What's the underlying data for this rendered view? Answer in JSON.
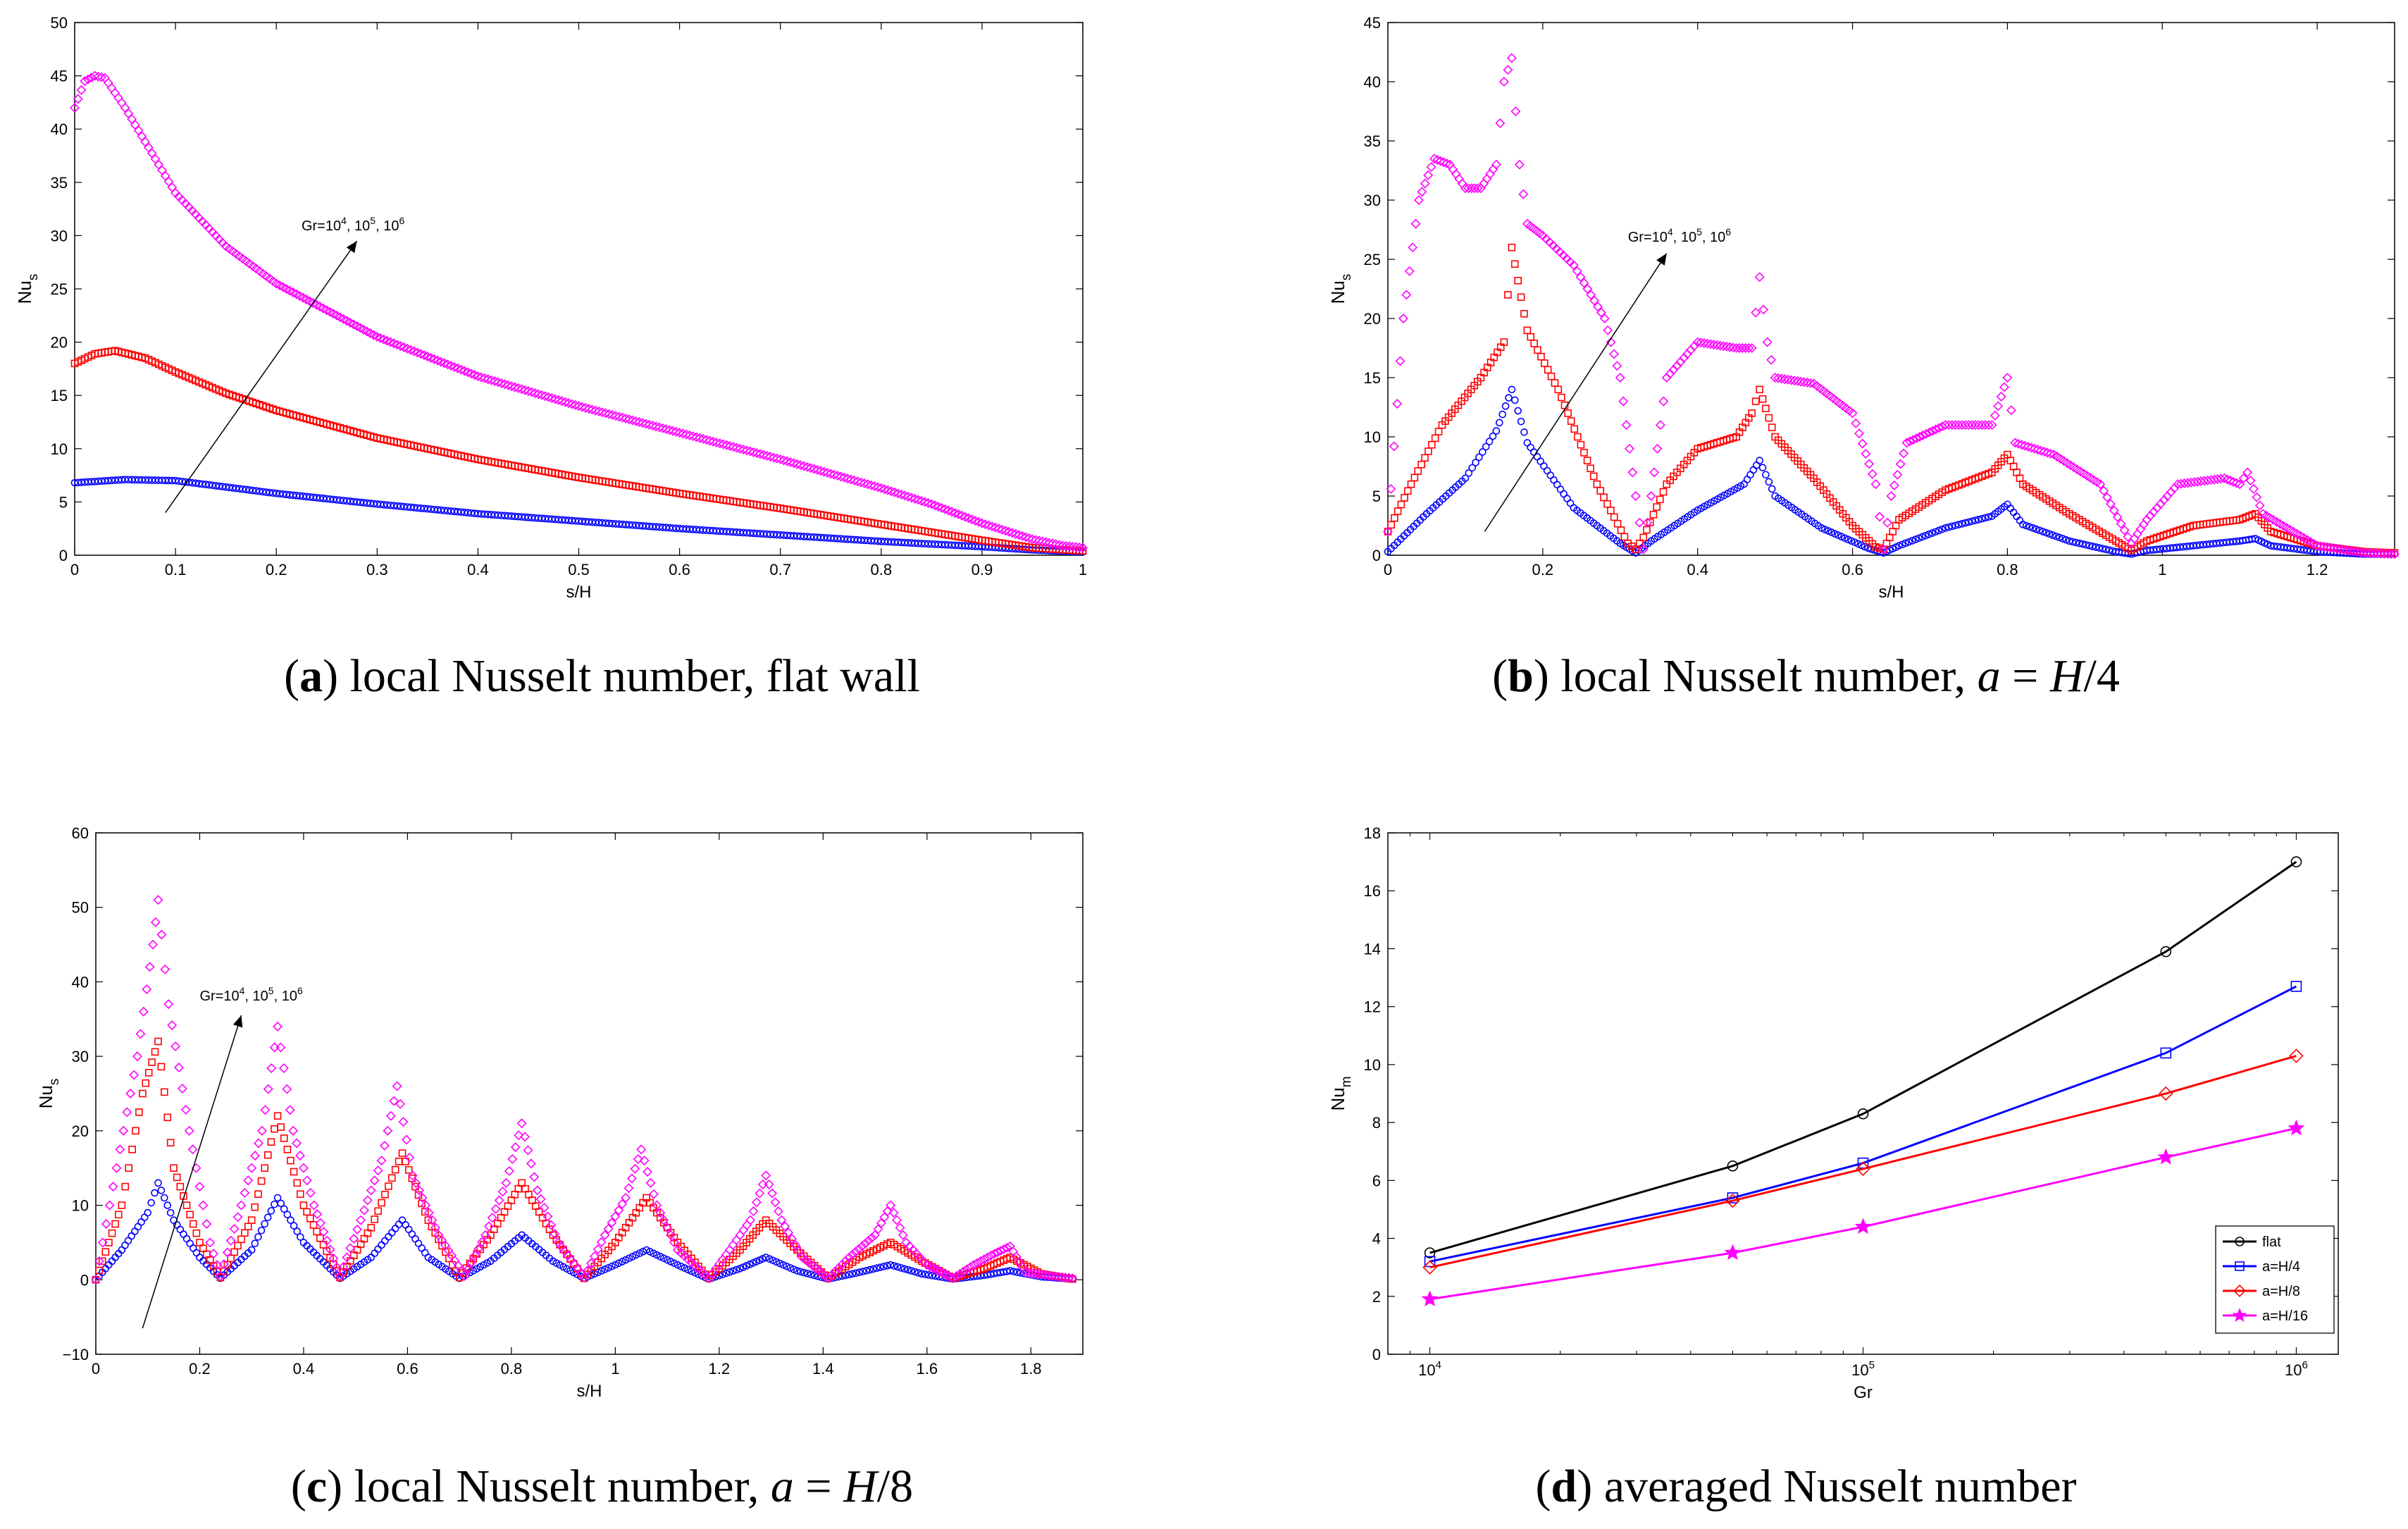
{
  "chart_data": [
    {
      "id": "a",
      "type": "scatter",
      "caption_letter": "a",
      "caption_text": "local Nusselt number, flat wall",
      "xlabel": "s/H",
      "ylabel_main": "Nu",
      "ylabel_sub": "s",
      "xlim": [
        0,
        1
      ],
      "ylim": [
        0,
        50
      ],
      "xticks": [
        0,
        0.1,
        0.2,
        0.3,
        0.4,
        0.5,
        0.6,
        0.7,
        0.8,
        0.9,
        1
      ],
      "xticklabels": [
        "0",
        "0.1",
        "0.2",
        "0.3",
        "0.4",
        "0.5",
        "0.6",
        "0.7",
        "0.8",
        "0.9",
        "1"
      ],
      "yticks": [
        0,
        5,
        10,
        15,
        20,
        25,
        30,
        35,
        40,
        45,
        50
      ],
      "yticklabels": [
        "0",
        "5",
        "10",
        "15",
        "20",
        "25",
        "30",
        "35",
        "40",
        "45",
        "50"
      ],
      "annotation": {
        "text": "Gr=10",
        "exps": [
          "4",
          "5",
          "6"
        ],
        "from": [
          0.09,
          4
        ],
        "to": [
          0.28,
          29.5
        ],
        "label_at": [
          0.225,
          30.5
        ]
      },
      "series": [
        {
          "name": "Gr=10^4",
          "color": "#0000ff",
          "marker": "circle",
          "x": [
            0,
            0.05,
            0.1,
            0.15,
            0.2,
            0.3,
            0.4,
            0.5,
            0.6,
            0.7,
            0.8,
            0.9,
            0.95,
            1
          ],
          "y": [
            6.8,
            7.1,
            7.0,
            6.4,
            5.8,
            4.8,
            3.9,
            3.2,
            2.5,
            1.9,
            1.3,
            0.8,
            0.5,
            0.3
          ]
        },
        {
          "name": "Gr=10^5",
          "color": "#ff0000",
          "marker": "square",
          "x": [
            0,
            0.02,
            0.04,
            0.07,
            0.1,
            0.15,
            0.2,
            0.3,
            0.4,
            0.5,
            0.6,
            0.7,
            0.8,
            0.9,
            0.95,
            1
          ],
          "y": [
            18.0,
            18.9,
            19.2,
            18.5,
            17.2,
            15.2,
            13.6,
            11.0,
            9.0,
            7.3,
            5.8,
            4.4,
            2.9,
            1.4,
            0.7,
            0.4
          ]
        },
        {
          "name": "Gr=10^6",
          "color": "#ff00ff",
          "marker": "diamond",
          "x": [
            0,
            0.01,
            0.02,
            0.03,
            0.05,
            0.1,
            0.15,
            0.2,
            0.3,
            0.4,
            0.5,
            0.6,
            0.7,
            0.8,
            0.85,
            0.9,
            0.95,
            0.98,
            1
          ],
          "y": [
            42.0,
            44.5,
            45.0,
            44.8,
            42.0,
            34.0,
            29.0,
            25.5,
            20.5,
            16.8,
            14.0,
            11.5,
            9.0,
            6.3,
            4.8,
            3.0,
            1.5,
            0.9,
            0.7
          ]
        }
      ]
    },
    {
      "id": "b",
      "type": "scatter",
      "caption_letter": "b",
      "caption_text": "local Nusselt number,",
      "caption_math_a": "a",
      "caption_math_eq": " = ",
      "caption_math_h": "H",
      "caption_math_frac": "/4",
      "xlabel": "s/H",
      "ylabel_main": "Nu",
      "ylabel_sub": "s",
      "xlim": [
        0,
        1.3
      ],
      "ylim": [
        0,
        45
      ],
      "xticks": [
        0,
        0.2,
        0.4,
        0.6,
        0.8,
        1,
        1.2
      ],
      "xticklabels": [
        "0",
        "0.2",
        "0.4",
        "0.6",
        "0.8",
        "1",
        "1.2"
      ],
      "yticks": [
        0,
        5,
        10,
        15,
        20,
        25,
        30,
        35,
        40,
        45
      ],
      "yticklabels": [
        "0",
        "5",
        "10",
        "15",
        "20",
        "25",
        "30",
        "35",
        "40",
        "45"
      ],
      "annotation": {
        "text": "Gr=10",
        "exps": [
          "4",
          "5",
          "6"
        ],
        "from": [
          0.125,
          2
        ],
        "to": [
          0.36,
          25.5
        ],
        "label_at": [
          0.31,
          26.5
        ]
      },
      "series": [
        {
          "name": "Gr=10^4",
          "color": "#0000ff",
          "marker": "circle",
          "x": [
            0,
            0.05,
            0.1,
            0.14,
            0.16,
            0.18,
            0.24,
            0.3,
            0.32,
            0.34,
            0.4,
            0.46,
            0.48,
            0.5,
            0.56,
            0.62,
            0.64,
            0.66,
            0.72,
            0.78,
            0.8,
            0.82,
            0.88,
            0.94,
            0.96,
            0.98,
            1.04,
            1.1,
            1.12,
            1.14,
            1.2,
            1.26,
            1.3
          ],
          "y": [
            0.3,
            3.5,
            6.5,
            10.5,
            14.0,
            9.5,
            4.0,
            1.0,
            0.2,
            1.2,
            3.8,
            6.0,
            8.0,
            5.0,
            2.3,
            0.6,
            0.2,
            0.8,
            2.3,
            3.3,
            4.3,
            2.6,
            1.2,
            0.3,
            0.1,
            0.4,
            0.8,
            1.2,
            1.4,
            0.8,
            0.3,
            0.1,
            0.1
          ]
        },
        {
          "name": "Gr=10^5",
          "color": "#ff0000",
          "marker": "square",
          "x": [
            0,
            0.03,
            0.07,
            0.12,
            0.15,
            0.16,
            0.18,
            0.22,
            0.27,
            0.31,
            0.32,
            0.33,
            0.36,
            0.4,
            0.45,
            0.47,
            0.48,
            0.5,
            0.55,
            0.6,
            0.63,
            0.64,
            0.66,
            0.72,
            0.78,
            0.8,
            0.82,
            0.88,
            0.94,
            0.96,
            0.98,
            1.04,
            1.1,
            1.12,
            1.14,
            1.2,
            1.26,
            1.3
          ],
          "y": [
            2.0,
            6.0,
            11.0,
            15.0,
            18.0,
            26.0,
            19.0,
            14.0,
            6.0,
            1.0,
            0.5,
            1.5,
            6.0,
            9.0,
            10.0,
            12.0,
            14.0,
            10.0,
            6.5,
            2.5,
            0.7,
            0.5,
            3.0,
            5.5,
            7.0,
            8.5,
            6.0,
            3.5,
            1.2,
            0.4,
            1.2,
            2.5,
            3.0,
            3.5,
            2.0,
            0.8,
            0.3,
            0.2
          ]
        },
        {
          "name": "Gr=10^6",
          "color": "#ff00ff",
          "marker": "diamond",
          "x": [
            0,
            0.02,
            0.04,
            0.06,
            0.08,
            0.1,
            0.12,
            0.14,
            0.15,
            0.16,
            0.17,
            0.18,
            0.2,
            0.24,
            0.28,
            0.3,
            0.32,
            0.33,
            0.34,
            0.36,
            0.4,
            0.45,
            0.47,
            0.48,
            0.49,
            0.5,
            0.55,
            0.6,
            0.63,
            0.64,
            0.65,
            0.67,
            0.72,
            0.78,
            0.8,
            0.81,
            0.86,
            0.92,
            0.96,
            0.98,
            1.02,
            1.08,
            1.1,
            1.11,
            1.13,
            1.2,
            1.26,
            1.3
          ],
          "y": [
            2.0,
            20.0,
            30.0,
            33.5,
            33.0,
            31.0,
            31.0,
            33.0,
            40.0,
            42.0,
            33.0,
            28.0,
            27.0,
            24.5,
            20.0,
            15.0,
            5.0,
            0.5,
            5.0,
            15.0,
            18.0,
            17.5,
            17.5,
            23.5,
            18.0,
            15.0,
            14.5,
            12.0,
            6.0,
            0.5,
            5.0,
            9.5,
            11.0,
            11.0,
            15.0,
            9.5,
            8.5,
            6.0,
            1.0,
            3.0,
            6.0,
            6.5,
            6.0,
            7.0,
            3.5,
            0.8,
            0.2,
            0.1
          ]
        }
      ]
    },
    {
      "id": "c",
      "type": "scatter",
      "caption_letter": "c",
      "caption_text": "local Nusselt number,",
      "caption_math_a": "a",
      "caption_math_eq": " = ",
      "caption_math_h": "H",
      "caption_math_frac": "/8",
      "xlabel": "s/H",
      "ylabel_main": "Nu",
      "ylabel_sub": "s",
      "xlim": [
        0,
        1.9
      ],
      "ylim": [
        -10,
        60
      ],
      "xticks": [
        0,
        0.2,
        0.4,
        0.6,
        0.8,
        1,
        1.2,
        1.4,
        1.6,
        1.8
      ],
      "xticklabels": [
        "0",
        "0.2",
        "0.4",
        "0.6",
        "0.8",
        "1",
        "1.2",
        "1.4",
        "1.6",
        "1.8"
      ],
      "yticks": [
        -10,
        0,
        10,
        20,
        30,
        40,
        50,
        60
      ],
      "yticklabels": [
        "−10",
        "0",
        "10",
        "20",
        "30",
        "40",
        "50",
        "60"
      ],
      "annotation": {
        "text": "Gr=10",
        "exps": [
          "4",
          "5",
          "6"
        ],
        "from": [
          0.09,
          -6.5
        ],
        "to": [
          0.28,
          35.5
        ],
        "label_at": [
          0.2,
          37.5
        ]
      },
      "series": [
        {
          "name": "Gr=10^4",
          "color": "#0000ff",
          "marker": "circle",
          "x": [
            0,
            0.05,
            0.1,
            0.12,
            0.15,
            0.2,
            0.24,
            0.3,
            0.35,
            0.4,
            0.47,
            0.53,
            0.59,
            0.64,
            0.7,
            0.76,
            0.82,
            0.88,
            0.94,
            1.0,
            1.06,
            1.12,
            1.18,
            1.24,
            1.29,
            1.35,
            1.41,
            1.47,
            1.53,
            1.59,
            1.65,
            1.71,
            1.76,
            1.82,
            1.88
          ],
          "y": [
            0,
            4.0,
            9.0,
            13.0,
            8.0,
            3.0,
            0.2,
            4.0,
            11.0,
            5.0,
            0.2,
            3.0,
            8.0,
            3.0,
            0.2,
            2.5,
            6.0,
            2.5,
            0.2,
            2.0,
            4.0,
            2.0,
            0.1,
            1.5,
            3.0,
            1.2,
            0.1,
            1.0,
            2.0,
            0.8,
            0.1,
            0.6,
            1.2,
            0.4,
            0.1
          ]
        },
        {
          "name": "Gr=10^5",
          "color": "#ff0000",
          "marker": "square",
          "x": [
            0,
            0.05,
            0.09,
            0.12,
            0.15,
            0.2,
            0.24,
            0.3,
            0.35,
            0.4,
            0.47,
            0.53,
            0.59,
            0.64,
            0.7,
            0.76,
            0.82,
            0.88,
            0.94,
            1.0,
            1.06,
            1.12,
            1.18,
            1.24,
            1.29,
            1.35,
            1.41,
            1.47,
            1.53,
            1.59,
            1.65,
            1.71,
            1.76,
            1.82,
            1.88
          ],
          "y": [
            0,
            10.0,
            25.0,
            32.0,
            15.0,
            5.0,
            0.3,
            8.0,
            22.0,
            10.0,
            0.3,
            7.0,
            17.0,
            8.0,
            0.3,
            6.0,
            13.0,
            6.0,
            0.2,
            5.0,
            11.0,
            5.0,
            0.2,
            4.0,
            8.0,
            4.0,
            0.2,
            3.0,
            5.0,
            2.5,
            0.2,
            1.5,
            3.0,
            0.8,
            0.1
          ]
        },
        {
          "name": "Gr=10^6",
          "color": "#ff00ff",
          "marker": "diamond",
          "x": [
            0,
            0.04,
            0.08,
            0.11,
            0.12,
            0.14,
            0.18,
            0.22,
            0.24,
            0.28,
            0.32,
            0.35,
            0.38,
            0.42,
            0.47,
            0.51,
            0.55,
            0.58,
            0.61,
            0.66,
            0.71,
            0.75,
            0.79,
            0.82,
            0.85,
            0.89,
            0.94,
            0.98,
            1.02,
            1.05,
            1.08,
            1.12,
            1.18,
            1.22,
            1.26,
            1.29,
            1.32,
            1.36,
            1.41,
            1.45,
            1.5,
            1.53,
            1.56,
            1.6,
            1.65,
            1.69,
            1.73,
            1.76,
            1.79,
            1.84,
            1.88
          ],
          "y": [
            0,
            15.0,
            30.0,
            45.0,
            51.0,
            37.0,
            20.0,
            5.0,
            0.5,
            10.0,
            20.0,
            34.0,
            20.0,
            10.0,
            0.5,
            8.0,
            16.0,
            26.0,
            14.0,
            6.0,
            0.5,
            6.0,
            13.0,
            21.0,
            12.0,
            5.0,
            0.3,
            6.0,
            11.0,
            17.5,
            10.0,
            4.0,
            0.2,
            4.0,
            8.0,
            14.0,
            8.0,
            3.0,
            0.2,
            3.0,
            6.0,
            10.0,
            5.0,
            2.0,
            0.2,
            2.0,
            3.5,
            4.5,
            1.0,
            0.5,
            0.2
          ]
        }
      ]
    },
    {
      "id": "d",
      "type": "line",
      "caption_letter": "d",
      "caption_text": "averaged Nusselt number",
      "xlabel": "Gr",
      "ylabel_main": "Nu",
      "ylabel_sub": "m",
      "xscale": "log",
      "xlim": [
        8000,
        1250000
      ],
      "ylim": [
        0,
        18
      ],
      "xticks": [
        10000,
        100000,
        1000000
      ],
      "xtick_base": "10",
      "xtick_exps": [
        "4",
        "5",
        "6"
      ],
      "yticks": [
        0,
        2,
        4,
        6,
        8,
        10,
        12,
        14,
        16,
        18
      ],
      "yticklabels": [
        "0",
        "2",
        "4",
        "6",
        "8",
        "10",
        "12",
        "14",
        "16",
        "18"
      ],
      "legend_position": "bottom-right",
      "x": [
        10000,
        50000,
        100000,
        500000,
        1000000
      ],
      "series": [
        {
          "name": "flat",
          "color": "#000000",
          "marker": "circle",
          "values": [
            3.5,
            6.5,
            8.3,
            13.9,
            17.0
          ]
        },
        {
          "name": "a=H/4",
          "color": "#0000ff",
          "marker": "square",
          "values": [
            3.2,
            5.4,
            6.6,
            10.4,
            12.7
          ]
        },
        {
          "name": "a=H/8",
          "color": "#ff0000",
          "marker": "diamond",
          "values": [
            3.0,
            5.3,
            6.4,
            9.0,
            10.3
          ]
        },
        {
          "name": "a=H/16",
          "color": "#ff00ff",
          "marker": "star",
          "values": [
            1.9,
            3.5,
            4.4,
            6.8,
            7.8
          ]
        }
      ]
    }
  ]
}
